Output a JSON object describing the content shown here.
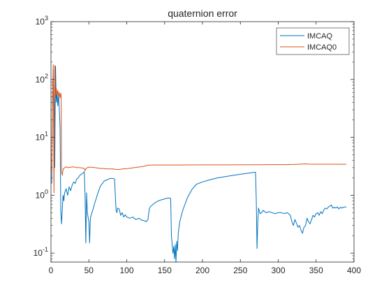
{
  "chart_data": {
    "type": "line",
    "title": "quaternion error",
    "xlabel": "",
    "ylabel": "",
    "xlim": [
      0,
      400
    ],
    "ylim": [
      0.07,
      1000
    ],
    "yscale": "log",
    "grid": false,
    "legend_placement": "top-right",
    "x_ticks": [
      "0",
      "50",
      "100",
      "150",
      "200",
      "250",
      "300",
      "350",
      "400"
    ],
    "y_ticks": [
      {
        "base": "10",
        "exp": "-1",
        "value": 0.1
      },
      {
        "base": "10",
        "exp": "0",
        "value": 1
      },
      {
        "base": "10",
        "exp": "1",
        "value": 10
      },
      {
        "base": "10",
        "exp": "2",
        "value": 100
      },
      {
        "base": "10",
        "exp": "3",
        "value": 1000
      }
    ],
    "series": [
      {
        "name": "IMCAQ",
        "color": "#0072BD",
        "points": [
          [
            1,
            1.6
          ],
          [
            2,
            45
          ],
          [
            3,
            150
          ],
          [
            4,
            20
          ],
          [
            5,
            3
          ],
          [
            6,
            170
          ],
          [
            7,
            40
          ],
          [
            8,
            60
          ],
          [
            9,
            35
          ],
          [
            10,
            55
          ],
          [
            11,
            30
          ],
          [
            12,
            15
          ],
          [
            13,
            0.5
          ],
          [
            14,
            0.32
          ],
          [
            15,
            0.6
          ],
          [
            16,
            1.0
          ],
          [
            17,
            0.8
          ],
          [
            18,
            1.1
          ],
          [
            20,
            1.3
          ],
          [
            22,
            1.0
          ],
          [
            24,
            1.4
          ],
          [
            26,
            1.2
          ],
          [
            28,
            1.5
          ],
          [
            30,
            1.7
          ],
          [
            32,
            1.6
          ],
          [
            34,
            1.9
          ],
          [
            36,
            2.0
          ],
          [
            38,
            2.2
          ],
          [
            40,
            2.3
          ],
          [
            42,
            2.4
          ],
          [
            44,
            2.55
          ],
          [
            45,
            1.0
          ],
          [
            46,
            0.15
          ],
          [
            47,
            1.1
          ],
          [
            48,
            0.5
          ],
          [
            50,
            0.35
          ],
          [
            51,
            0.15
          ],
          [
            52,
            0.4
          ],
          [
            54,
            0.5
          ],
          [
            56,
            0.6
          ],
          [
            58,
            0.75
          ],
          [
            60,
            0.9
          ],
          [
            62,
            1.1
          ],
          [
            64,
            1.3
          ],
          [
            66,
            1.5
          ],
          [
            68,
            1.6
          ],
          [
            70,
            1.75
          ],
          [
            72,
            1.8
          ],
          [
            74,
            1.85
          ],
          [
            76,
            1.9
          ],
          [
            78,
            1.95
          ],
          [
            80,
            1.95
          ],
          [
            82,
            1.95
          ],
          [
            84,
            1.9
          ],
          [
            85,
            0.95
          ],
          [
            86,
            0.55
          ],
          [
            87,
            0.5
          ],
          [
            88,
            0.6
          ],
          [
            90,
            0.58
          ],
          [
            92,
            0.45
          ],
          [
            94,
            0.5
          ],
          [
            96,
            0.42
          ],
          [
            98,
            0.46
          ],
          [
            100,
            0.42
          ],
          [
            104,
            0.4
          ],
          [
            108,
            0.42
          ],
          [
            112,
            0.38
          ],
          [
            116,
            0.4
          ],
          [
            120,
            0.37
          ],
          [
            124,
            0.36
          ],
          [
            126,
            0.35
          ],
          [
            128,
            0.38
          ],
          [
            130,
            0.6
          ],
          [
            132,
            0.65
          ],
          [
            134,
            0.68
          ],
          [
            136,
            0.72
          ],
          [
            138,
            0.75
          ],
          [
            140,
            0.78
          ],
          [
            144,
            0.82
          ],
          [
            148,
            0.85
          ],
          [
            152,
            0.88
          ],
          [
            156,
            0.9
          ],
          [
            158,
            0.88
          ],
          [
            159,
            0.2
          ],
          [
            161,
            0.1
          ],
          [
            162,
            0.13
          ],
          [
            163,
            0.08
          ],
          [
            164,
            0.14
          ],
          [
            165,
            0.07
          ],
          [
            166,
            0.16
          ],
          [
            167,
            0.11
          ],
          [
            168,
            0.22
          ],
          [
            170,
            0.35
          ],
          [
            174,
            0.55
          ],
          [
            180,
            0.9
          ],
          [
            186,
            1.25
          ],
          [
            192,
            1.55
          ],
          [
            200,
            1.7
          ],
          [
            210,
            1.85
          ],
          [
            220,
            2.0
          ],
          [
            230,
            2.1
          ],
          [
            240,
            2.2
          ],
          [
            250,
            2.3
          ],
          [
            260,
            2.4
          ],
          [
            270,
            2.5
          ],
          [
            271,
            0.85
          ],
          [
            272,
            0.12
          ],
          [
            273,
            0.35
          ],
          [
            274,
            0.6
          ],
          [
            276,
            0.48
          ],
          [
            278,
            0.5
          ],
          [
            280,
            0.55
          ],
          [
            284,
            0.5
          ],
          [
            288,
            0.52
          ],
          [
            292,
            0.5
          ],
          [
            296,
            0.48
          ],
          [
            300,
            0.5
          ],
          [
            304,
            0.5
          ],
          [
            308,
            0.48
          ],
          [
            312,
            0.5
          ],
          [
            316,
            0.45
          ],
          [
            318,
            0.35
          ],
          [
            320,
            0.3
          ],
          [
            322,
            0.38
          ],
          [
            324,
            0.33
          ],
          [
            326,
            0.28
          ],
          [
            328,
            0.3
          ],
          [
            330,
            0.25
          ],
          [
            332,
            0.22
          ],
          [
            334,
            0.28
          ],
          [
            336,
            0.3
          ],
          [
            338,
            0.4
          ],
          [
            340,
            0.35
          ],
          [
            342,
            0.32
          ],
          [
            344,
            0.38
          ],
          [
            346,
            0.45
          ],
          [
            348,
            0.42
          ],
          [
            350,
            0.48
          ],
          [
            352,
            0.5
          ],
          [
            354,
            0.45
          ],
          [
            356,
            0.52
          ],
          [
            358,
            0.48
          ],
          [
            360,
            0.55
          ],
          [
            362,
            0.6
          ],
          [
            364,
            0.58
          ],
          [
            366,
            0.62
          ],
          [
            368,
            0.65
          ],
          [
            370,
            0.68
          ],
          [
            372,
            0.6
          ],
          [
            374,
            0.62
          ],
          [
            376,
            0.6
          ],
          [
            378,
            0.63
          ],
          [
            380,
            0.58
          ],
          [
            382,
            0.62
          ],
          [
            384,
            0.6
          ],
          [
            386,
            0.62
          ],
          [
            388,
            0.63
          ],
          [
            390,
            0.62
          ]
        ]
      },
      {
        "name": "IMCAQ0",
        "color": "#D95319",
        "points": [
          [
            1,
            2.5
          ],
          [
            2,
            40
          ],
          [
            3,
            180
          ],
          [
            4,
            1.1
          ],
          [
            5,
            175
          ],
          [
            6,
            50
          ],
          [
            7,
            70
          ],
          [
            8,
            55
          ],
          [
            9,
            65
          ],
          [
            10,
            50
          ],
          [
            11,
            60
          ],
          [
            12,
            48
          ],
          [
            13,
            58
          ],
          [
            13.5,
            50
          ],
          [
            14,
            2.5
          ],
          [
            15,
            2.2
          ],
          [
            16,
            2.8
          ],
          [
            18,
            3.0
          ],
          [
            20,
            3.1
          ],
          [
            22,
            3.0
          ],
          [
            26,
            3.05
          ],
          [
            30,
            3.1
          ],
          [
            34,
            3.0
          ],
          [
            38,
            3.0
          ],
          [
            42,
            2.95
          ],
          [
            44,
            2.9
          ],
          [
            45,
            2.65
          ],
          [
            46,
            2.85
          ],
          [
            48,
            3.0
          ],
          [
            50,
            3.05
          ],
          [
            54,
            3.05
          ],
          [
            58,
            3.0
          ],
          [
            62,
            2.95
          ],
          [
            66,
            2.9
          ],
          [
            70,
            2.9
          ],
          [
            74,
            2.85
          ],
          [
            78,
            2.85
          ],
          [
            82,
            2.85
          ],
          [
            86,
            2.8
          ],
          [
            90,
            2.78
          ],
          [
            94,
            2.85
          ],
          [
            98,
            2.88
          ],
          [
            102,
            2.9
          ],
          [
            106,
            2.95
          ],
          [
            110,
            3.0
          ],
          [
            114,
            3.05
          ],
          [
            118,
            3.1
          ],
          [
            122,
            3.15
          ],
          [
            126,
            3.25
          ],
          [
            128,
            3.3
          ],
          [
            130,
            3.32
          ],
          [
            140,
            3.33
          ],
          [
            150,
            3.33
          ],
          [
            160,
            3.33
          ],
          [
            170,
            3.33
          ],
          [
            180,
            3.34
          ],
          [
            190,
            3.34
          ],
          [
            200,
            3.35
          ],
          [
            220,
            3.35
          ],
          [
            240,
            3.35
          ],
          [
            260,
            3.36
          ],
          [
            280,
            3.37
          ],
          [
            300,
            3.38
          ],
          [
            310,
            3.38
          ],
          [
            320,
            3.4
          ],
          [
            330,
            3.45
          ],
          [
            335,
            3.48
          ],
          [
            340,
            3.45
          ],
          [
            345,
            3.44
          ],
          [
            350,
            3.44
          ],
          [
            360,
            3.44
          ],
          [
            370,
            3.43
          ],
          [
            380,
            3.43
          ],
          [
            390,
            3.42
          ]
        ]
      }
    ]
  }
}
